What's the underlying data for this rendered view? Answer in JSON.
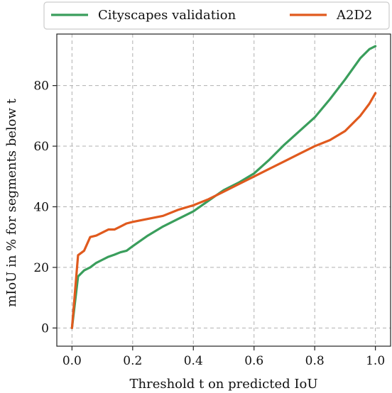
{
  "chart_data": {
    "type": "line",
    "xlabel": "Threshold t on predicted IoU",
    "ylabel": "mIoU in % for segments below t",
    "xlim": [
      -0.05,
      1.05
    ],
    "ylim": [
      -6,
      97
    ],
    "xticks": [
      0.0,
      0.2,
      0.4,
      0.6,
      0.8,
      1.0
    ],
    "xtick_labels": [
      "0.0",
      "0.2",
      "0.4",
      "0.6",
      "0.8",
      "1.0"
    ],
    "yticks": [
      0,
      20,
      40,
      60,
      80
    ],
    "ytick_labels": [
      "0",
      "20",
      "40",
      "60",
      "80"
    ],
    "grid": true,
    "legend_position": "top",
    "series": [
      {
        "name": "Cityscapes validation",
        "color": "#3a9e5c",
        "x": [
          0.0,
          0.02,
          0.04,
          0.06,
          0.08,
          0.1,
          0.12,
          0.14,
          0.16,
          0.18,
          0.2,
          0.25,
          0.3,
          0.35,
          0.4,
          0.45,
          0.5,
          0.55,
          0.6,
          0.65,
          0.7,
          0.75,
          0.8,
          0.85,
          0.9,
          0.95,
          0.98,
          1.0
        ],
        "y": [
          0,
          17,
          19,
          20,
          21.5,
          22.5,
          23.5,
          24.2,
          25,
          25.5,
          27,
          30.5,
          33.5,
          36,
          38.5,
          42,
          45.5,
          48,
          51,
          55.5,
          60.5,
          65,
          69.5,
          75.5,
          82,
          89,
          92,
          93
        ]
      },
      {
        "name": "A2D2",
        "color": "#e05a1e",
        "x": [
          0.0,
          0.02,
          0.04,
          0.06,
          0.08,
          0.1,
          0.12,
          0.14,
          0.16,
          0.18,
          0.2,
          0.25,
          0.3,
          0.35,
          0.4,
          0.45,
          0.5,
          0.55,
          0.6,
          0.65,
          0.7,
          0.75,
          0.8,
          0.85,
          0.9,
          0.95,
          0.98,
          1.0
        ],
        "y": [
          0,
          24,
          25.5,
          30,
          30.5,
          31.5,
          32.5,
          32.5,
          33.5,
          34.5,
          35,
          36,
          37,
          39,
          40.5,
          42.5,
          45,
          47.5,
          50,
          52.5,
          55,
          57.5,
          60,
          62,
          65,
          70,
          74,
          77.5
        ]
      }
    ]
  }
}
